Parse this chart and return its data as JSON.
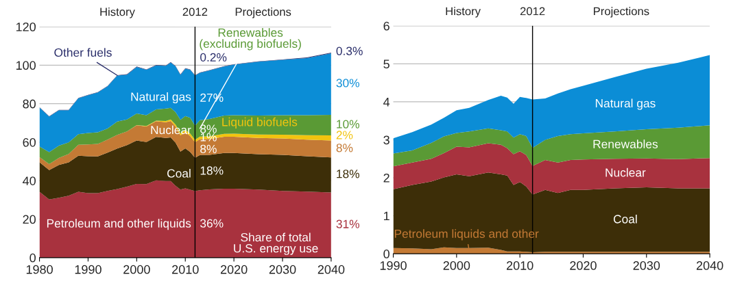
{
  "chart_data": [
    {
      "type": "area",
      "stacked": true,
      "x": [
        1980,
        1982,
        1984,
        1986,
        1988,
        1990,
        1992,
        1994,
        1996,
        1998,
        2000,
        2002,
        2004,
        2006,
        2007,
        2008,
        2009,
        2010,
        2011,
        2012,
        2013,
        2015,
        2018,
        2020,
        2025,
        2030,
        2035,
        2040
      ],
      "series": [
        {
          "name": "Petroleum and other liquids",
          "color": "#a8323e",
          "values": [
            34.2,
            30.2,
            31.1,
            32.2,
            34.2,
            33.5,
            33.5,
            34.7,
            35.7,
            36.9,
            38.3,
            38.2,
            40.2,
            39.8,
            39.8,
            37.3,
            35.4,
            36.0,
            35.3,
            34.6,
            35.0,
            35.5,
            35.8,
            35.8,
            35.4,
            34.7,
            34.3,
            33.9
          ]
        },
        {
          "name": "Coal",
          "color": "#3d2e08",
          "values": [
            15.4,
            15.3,
            17.1,
            17.3,
            18.8,
            19.2,
            19.1,
            19.9,
            21.0,
            21.6,
            22.6,
            21.9,
            22.5,
            22.4,
            22.7,
            22.4,
            19.7,
            20.8,
            19.6,
            17.3,
            18.3,
            17.9,
            18.6,
            18.6,
            18.4,
            18.7,
            18.4,
            18.2
          ]
        },
        {
          "name": "Nuclear",
          "color": "#c47a35",
          "values": [
            2.7,
            3.1,
            3.6,
            4.4,
            5.7,
            6.1,
            6.5,
            6.7,
            7.1,
            7.1,
            7.9,
            8.1,
            8.2,
            8.2,
            8.5,
            8.4,
            8.4,
            8.4,
            8.3,
            8.1,
            8.3,
            8.3,
            8.4,
            8.4,
            8.4,
            8.5,
            8.6,
            8.8
          ]
        },
        {
          "name": "Liquid biofuels",
          "color": "#f2c40f",
          "values": [
            0,
            0,
            0,
            0,
            0,
            0,
            0,
            0,
            0,
            0,
            0.1,
            0.2,
            0.3,
            0.6,
            0.8,
            1.0,
            1.1,
            1.2,
            1.3,
            1.2,
            1.3,
            1.4,
            1.5,
            1.6,
            1.8,
            2.0,
            2.3,
            2.6
          ]
        },
        {
          "name": "Renewables\n(excluding biofuels)",
          "color": "#5a9a35",
          "values": [
            5.5,
            6.2,
            6.4,
            6.0,
            5.5,
            6.0,
            6.0,
            5.8,
            6.9,
            6.2,
            6.0,
            5.6,
            5.8,
            6.5,
            6.0,
            6.5,
            7.0,
            7.2,
            8.2,
            7.4,
            8.5,
            9.0,
            9.5,
            9.6,
            9.8,
            10.1,
            10.4,
            10.7
          ]
        },
        {
          "name": "Natural gas",
          "color": "#0b8dd6",
          "values": [
            20.2,
            18.5,
            18.4,
            16.7,
            18.6,
            19.6,
            20.7,
            21.9,
            23.9,
            23.3,
            24.2,
            23.6,
            22.9,
            22.2,
            23.6,
            23.8,
            23.4,
            24.6,
            24.9,
            26.0,
            24.6,
            25.2,
            25.5,
            26.3,
            28.0,
            28.8,
            29.7,
            32.0
          ]
        },
        {
          "name": "Other fuels",
          "color": "#2b2f6b",
          "values": [
            0.2,
            0.2,
            0.2,
            0.2,
            0.2,
            0.2,
            0.2,
            0.2,
            0.2,
            0.2,
            0.2,
            0.2,
            0.2,
            0.2,
            0.2,
            0.2,
            0.2,
            0.2,
            0.2,
            0.2,
            0.2,
            0.2,
            0.2,
            0.2,
            0.2,
            0.2,
            0.3,
            0.3
          ]
        }
      ],
      "xlim": [
        1980,
        2040
      ],
      "xticks": [
        1980,
        1990,
        2000,
        2010,
        2020,
        2030,
        2040
      ],
      "ylim": [
        0,
        120
      ],
      "yticks": [
        0,
        20,
        40,
        60,
        80,
        100,
        120
      ],
      "grid": "y",
      "ref_lines": [
        {
          "axis": "x",
          "value": 2012,
          "label": "2012",
          "color": "#000000"
        }
      ],
      "annotations": [
        "History",
        "Projections",
        "Share of total\nU.S. energy use",
        "0.2%",
        "27%",
        "8%",
        "1%",
        "8%",
        "18%",
        "36%",
        "0.3%",
        "30%",
        "10%",
        "2%",
        "8%",
        "18%",
        "31%"
      ]
    },
    {
      "type": "area",
      "stacked": true,
      "x": [
        1990,
        1993,
        1996,
        1998,
        2000,
        2002,
        2005,
        2007,
        2008,
        2009,
        2010,
        2011,
        2012,
        2014,
        2016,
        2018,
        2020,
        2025,
        2030,
        2035,
        2040
      ],
      "series": [
        {
          "name": "Petroleum liquids and other",
          "color": "#c47a35",
          "values": [
            0.15,
            0.14,
            0.12,
            0.17,
            0.15,
            0.15,
            0.16,
            0.1,
            0.06,
            0.06,
            0.06,
            0.05,
            0.04,
            0.05,
            0.05,
            0.05,
            0.05,
            0.05,
            0.05,
            0.05,
            0.05
          ]
        },
        {
          "name": "Coal",
          "color": "#3d2e08",
          "values": [
            1.55,
            1.67,
            1.78,
            1.84,
            1.94,
            1.89,
            1.98,
            1.99,
            2.0,
            1.75,
            1.83,
            1.72,
            1.52,
            1.63,
            1.55,
            1.63,
            1.63,
            1.67,
            1.7,
            1.67,
            1.67
          ]
        },
        {
          "name": "Nuclear",
          "color": "#a8323e",
          "values": [
            0.6,
            0.59,
            0.6,
            0.64,
            0.73,
            0.76,
            0.77,
            0.78,
            0.72,
            0.81,
            0.81,
            0.83,
            0.75,
            0.79,
            0.8,
            0.79,
            0.8,
            0.78,
            0.76,
            0.77,
            0.8
          ]
        },
        {
          "name": "Renewables",
          "color": "#5a9a35",
          "values": [
            0.34,
            0.32,
            0.42,
            0.44,
            0.36,
            0.42,
            0.39,
            0.38,
            0.44,
            0.44,
            0.45,
            0.5,
            0.48,
            0.53,
            0.7,
            0.68,
            0.69,
            0.72,
            0.77,
            0.83,
            0.86
          ]
        },
        {
          "name": "Natural gas",
          "color": "#0b8dd6",
          "values": [
            0.4,
            0.48,
            0.48,
            0.49,
            0.6,
            0.62,
            0.75,
            0.91,
            0.89,
            0.89,
            0.98,
            1.0,
            1.27,
            1.09,
            1.12,
            1.18,
            1.25,
            1.43,
            1.59,
            1.71,
            1.85
          ]
        }
      ],
      "xlim": [
        1990,
        2040
      ],
      "xticks": [
        1990,
        2000,
        2010,
        2020,
        2030,
        2040
      ],
      "ylim": [
        0,
        6
      ],
      "yticks": [
        0,
        1,
        2,
        3,
        4,
        5,
        6
      ],
      "grid": "y",
      "ref_lines": [
        {
          "axis": "x",
          "value": 2012,
          "label": "2012",
          "color": "#000000"
        }
      ],
      "annotations": [
        "History",
        "Projections"
      ]
    }
  ]
}
